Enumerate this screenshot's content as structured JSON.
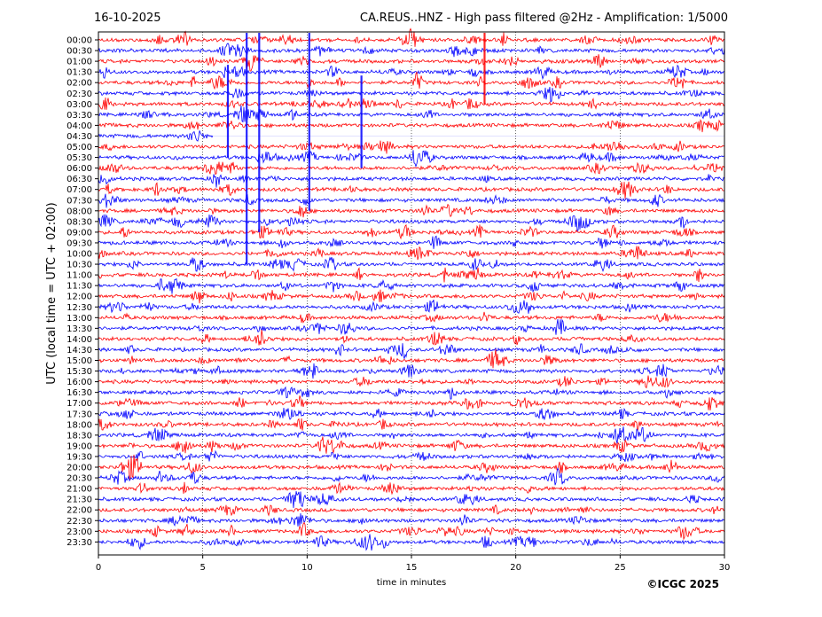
{
  "header": {
    "date": "16-10-2025",
    "title": "CA.REUS..HNZ - High pass filtered @2Hz - Amplification: 1/5000"
  },
  "footer": {
    "copyright": "©ICGC 2025"
  },
  "chart_data": {
    "type": "line",
    "title": "CA.REUS..HNZ - High pass filtered @2Hz - Amplification: 1/5000",
    "xlabel": "time in minutes",
    "ylabel": "UTC (local time = UTC + 02:00)",
    "xlim": [
      0,
      30
    ],
    "x_ticks": [
      0,
      5,
      10,
      15,
      20,
      25,
      30
    ],
    "grid_x": [
      5,
      10,
      15,
      20,
      25
    ],
    "grid": "vertical dotted",
    "rows": [
      "00:00",
      "00:30",
      "01:00",
      "01:30",
      "02:00",
      "02:30",
      "03:00",
      "03:30",
      "04:00",
      "04:30",
      "05:00",
      "05:30",
      "06:00",
      "06:30",
      "07:00",
      "07:30",
      "08:00",
      "08:30",
      "09:00",
      "09:30",
      "10:00",
      "10:30",
      "11:00",
      "11:30",
      "12:00",
      "12:30",
      "13:00",
      "13:30",
      "14:00",
      "14:30",
      "15:00",
      "15:30",
      "16:00",
      "16:30",
      "17:00",
      "17:30",
      "18:00",
      "18:30",
      "19:00",
      "19:30",
      "20:00",
      "20:30",
      "21:00",
      "21:30",
      "22:00",
      "22:30",
      "23:00",
      "23:30"
    ],
    "row_colors": [
      "#ff0000",
      "#0000ff"
    ],
    "trace_gap_rows": {
      "04:30": [
        5.5,
        30
      ]
    },
    "tall_spikes": [
      {
        "row": "00:00",
        "x": 18.5,
        "span_rows": 6,
        "color": "#ff0000"
      },
      {
        "row": "01:30",
        "x": 6.2,
        "span_rows": 8,
        "color": "#0000ff"
      },
      {
        "row": "00:00",
        "x": 7.1,
        "span_rows": 21,
        "color": "#0000ff"
      },
      {
        "row": "00:00",
        "x": 7.7,
        "span_rows": 18,
        "color": "#0000ff"
      },
      {
        "row": "00:00",
        "x": 10.1,
        "span_rows": 16,
        "color": "#0000ff"
      },
      {
        "row": "02:00",
        "x": 12.6,
        "span_rows": 8,
        "color": "#0000ff"
      }
    ]
  }
}
